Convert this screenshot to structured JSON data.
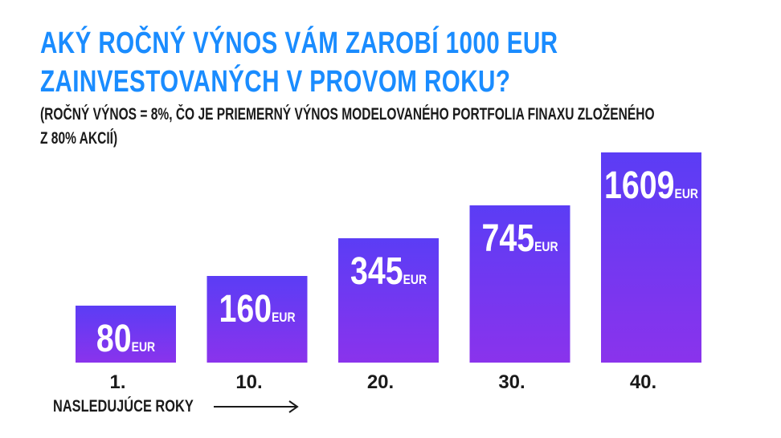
{
  "title_lines": [
    "AKÝ ROČNÝ VÝNOS VÁM ZAROBÍ 1000 EUR",
    "ZAINVESTOVANÝCH V PROVOM ROKU?"
  ],
  "subtitle_lines": [
    "(ROČNÝ VÝNOS = 8%, ČO JE PRIEMERNÝ VÝNOS MODELOVANÉHO PORTFOLIA FINAXU ZLOŽENÉHO",
    "Z 80% AKCIÍ)"
  ],
  "axis_caption": "NASLEDUJÚCE ROKY",
  "colors": {
    "title": "#1a8cff",
    "bar_top": "#5b3df5",
    "bar_bottom": "#8a33ec",
    "text_dark": "#1a1a1a"
  },
  "chart_data": {
    "type": "bar",
    "categories": [
      "1.",
      "10.",
      "20.",
      "30.",
      "40."
    ],
    "values": [
      80,
      160,
      345,
      745,
      1609
    ],
    "unit": "EUR",
    "title": "",
    "xlabel": "NASLEDUJÚCE ROKY",
    "ylabel": "",
    "grid": false,
    "legend": "none"
  }
}
